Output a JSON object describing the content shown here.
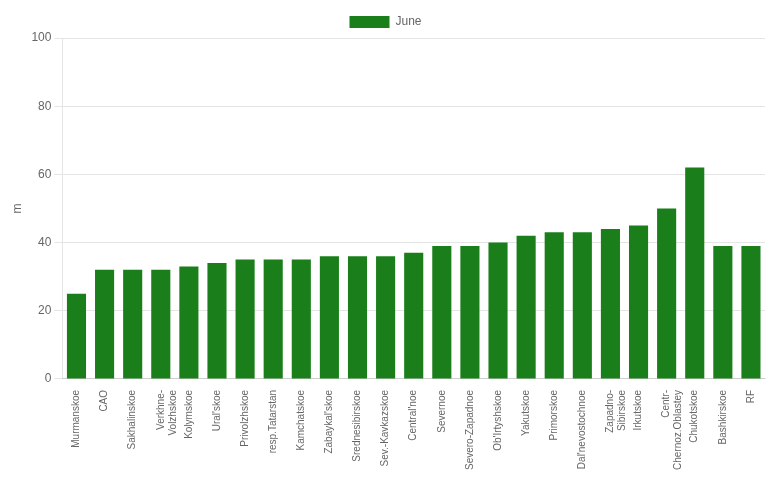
{
  "chart_data": {
    "type": "bar",
    "y_label": "m",
    "categories": [
      "Murmanskoe",
      "CAO",
      "Sakhalinskoe",
      "Verkhne-\nVolzhskoe",
      "Kolymskoe",
      "Ural'skoe",
      "Privolzhskoe",
      "resp.Tatarstan",
      "Kamchatskoe",
      "Zabaykal'skoe",
      "Srednesibirskoe",
      "Sev.-Kavkazskoe",
      "Central'noe",
      "Severnoe",
      "Severo-Zapadnoe",
      "Ob'Irtyshskoe",
      "Yakutskoe",
      "Primorskoe",
      "Dal'nevostochnoe",
      "Zapadno-\nSibirskoe",
      "Irkutskoe",
      "Centr-\nChernoz.Oblastey",
      "Chukotskoe",
      "Bashkirskoe",
      "RF"
    ],
    "series": [
      {
        "name": "June",
        "color": "#1a7f1a",
        "values": [
          25,
          32,
          32,
          32,
          33,
          34,
          35,
          35,
          35,
          36,
          36,
          36,
          37,
          39,
          39,
          40,
          42,
          43,
          43,
          44,
          45,
          50,
          62,
          39,
          39
        ]
      }
    ],
    "ylim": [
      0,
      100
    ],
    "yticks": [
      0,
      20,
      40,
      60,
      80,
      100
    ],
    "grid": true,
    "legend": "top"
  }
}
